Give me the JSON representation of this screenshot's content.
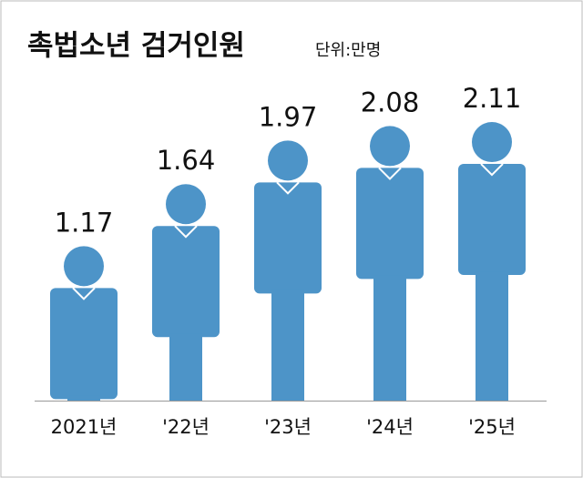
{
  "chart_data": {
    "type": "pictograph",
    "title": "촉법소년 검거인원",
    "subtitle": "단위:만명",
    "categories": [
      "2021년",
      "'22년",
      "'23년",
      "'24년",
      "'25년"
    ],
    "values": [
      1.17,
      1.64,
      1.97,
      2.08,
      2.11
    ],
    "color": "#4d94c8"
  }
}
